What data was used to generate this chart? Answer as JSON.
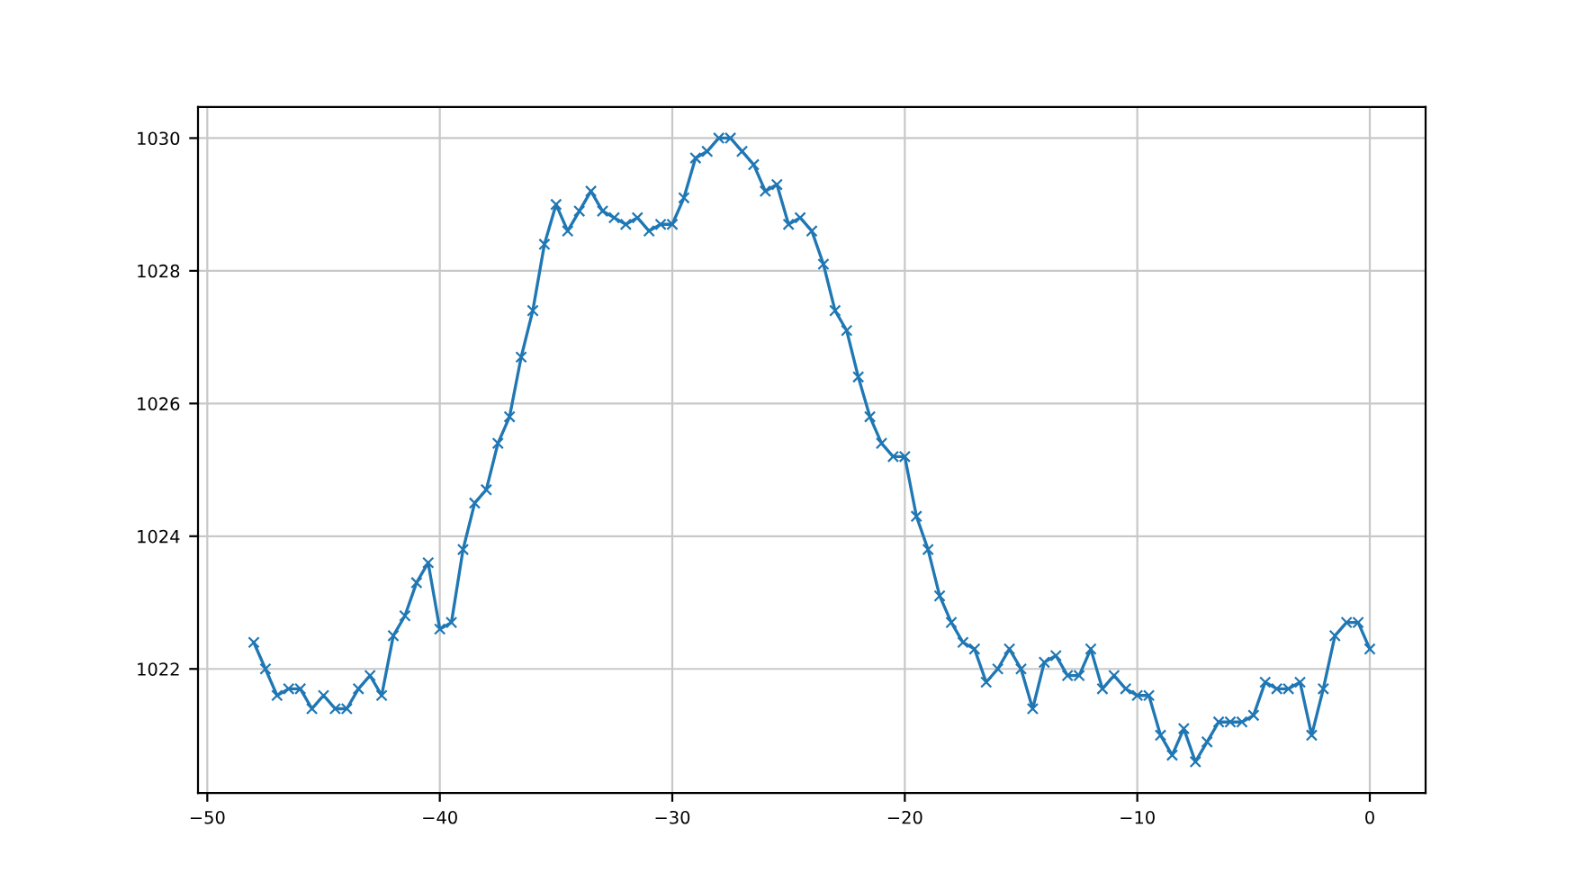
{
  "chart_data": {
    "type": "line",
    "x": [
      -48,
      -47.5,
      -47,
      -46.5,
      -46,
      -45.5,
      -45,
      -44.5,
      -44,
      -43.5,
      -43,
      -42.5,
      -42,
      -41.5,
      -41,
      -40.5,
      -40,
      -39.5,
      -39,
      -38.5,
      -38,
      -37.5,
      -37,
      -36.5,
      -36,
      -35.5,
      -35,
      -34.5,
      -34,
      -33.5,
      -33,
      -32.5,
      -32,
      -31.5,
      -31,
      -30.5,
      -30,
      -29.5,
      -29,
      -28.5,
      -28,
      -27.5,
      -27,
      -26.5,
      -26,
      -25.5,
      -25,
      -24.5,
      -24,
      -23.5,
      -23,
      -22.5,
      -22,
      -21.5,
      -21,
      -20.5,
      -20,
      -19.5,
      -19,
      -18.5,
      -18,
      -17.5,
      -17,
      -16.5,
      -16,
      -15.5,
      -15,
      -14.5,
      -14,
      -13.5,
      -13,
      -12.5,
      -12,
      -11.5,
      -11,
      -10.5,
      -10,
      -9.5,
      -9,
      -8.5,
      -8,
      -7.5,
      -7,
      -6.5,
      -6,
      -5.5,
      -5,
      -4.5,
      -4,
      -3.5,
      -3,
      -2.5,
      -2,
      -1.5,
      -1,
      -0.5,
      0
    ],
    "series": [
      {
        "color": "#1f77b4",
        "values": [
          1022.4,
          1022.0,
          1021.6,
          1021.7,
          1021.7,
          1021.4,
          1021.6,
          1021.4,
          1021.4,
          1021.7,
          1021.9,
          1021.6,
          1022.5,
          1022.8,
          1023.3,
          1023.6,
          1022.6,
          1022.7,
          1023.8,
          1024.5,
          1024.7,
          1025.4,
          1025.8,
          1026.7,
          1027.4,
          1028.4,
          1029.0,
          1028.6,
          1028.9,
          1029.2,
          1028.9,
          1028.8,
          1028.7,
          1028.8,
          1028.6,
          1028.7,
          1028.7,
          1029.1,
          1029.7,
          1029.8,
          1030.0,
          1030.0,
          1029.8,
          1029.6,
          1029.2,
          1029.3,
          1028.7,
          1028.8,
          1028.6,
          1028.1,
          1027.4,
          1027.1,
          1026.4,
          1025.8,
          1025.4,
          1025.2,
          1025.2,
          1024.3,
          1023.8,
          1023.1,
          1022.7,
          1022.4,
          1022.3,
          1021.8,
          1022.0,
          1022.3,
          1022.0,
          1021.4,
          1022.1,
          1022.2,
          1021.9,
          1021.9,
          1022.3,
          1021.7,
          1021.9,
          1021.7,
          1021.6,
          1021.6,
          1021.0,
          1020.7,
          1021.1,
          1020.6,
          1020.9,
          1021.2,
          1021.2,
          1021.2,
          1021.3,
          1021.8,
          1021.7,
          1021.7,
          1021.8,
          1021.0,
          1021.7,
          1022.5,
          1022.7,
          1022.7,
          1022.3
        ]
      }
    ],
    "xlim": [
      -50.4,
      2.4
    ],
    "xticks": [
      {
        "value": -50,
        "label": "−50"
      },
      {
        "value": -40,
        "label": "−40"
      },
      {
        "value": -30,
        "label": "−30"
      },
      {
        "value": -20,
        "label": "−20"
      },
      {
        "value": -10,
        "label": "−10"
      },
      0
    ],
    "ylim": [
      1020.13,
      1030.47
    ],
    "yticks": [
      1022,
      1024,
      1026,
      1028,
      1030
    ],
    "grid": true,
    "marker": "cross",
    "line_style": "solid"
  }
}
